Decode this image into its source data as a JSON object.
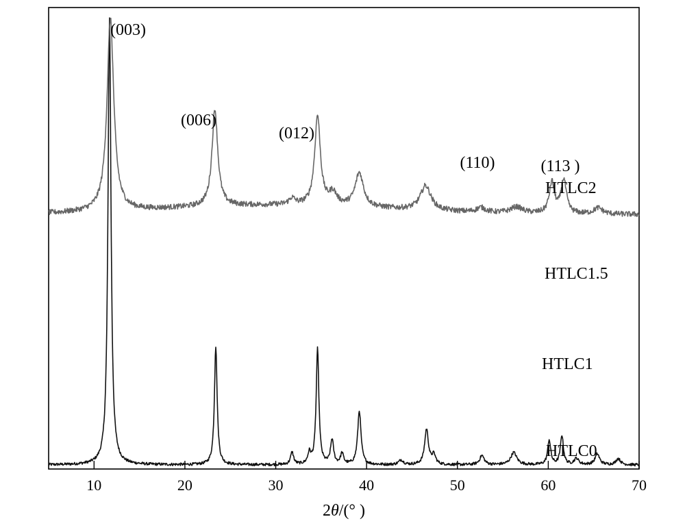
{
  "chart_data": {
    "type": "line",
    "xlabel_prefix": "2",
    "xlabel_theta": "θ",
    "xlabel_suffix": "/(° )",
    "xlim": [
      5,
      70
    ],
    "y_ticks_shown": false,
    "x_ticks": [
      10,
      20,
      30,
      40,
      50,
      60,
      70
    ],
    "peak_labels": [
      {
        "text": "(003)",
        "x": 11.5
      },
      {
        "text": "(006)",
        "x": 23.0
      },
      {
        "text": "(012)",
        "x": 34.5
      },
      {
        "text": "(110)",
        "x": 60.5
      },
      {
        "text": "(113 )",
        "x": 61.8
      }
    ],
    "series": [
      {
        "name": "HTLC0",
        "color": "#111111",
        "baseline": 0.0,
        "x_start": 5,
        "peaks": [
          [
            11.7,
            29.0,
            0.2
          ],
          [
            23.4,
            7.7,
            0.18
          ],
          [
            31.8,
            0.8,
            0.2
          ],
          [
            33.7,
            0.7,
            0.2
          ],
          [
            34.6,
            7.5,
            0.18
          ],
          [
            36.2,
            1.6,
            0.2
          ],
          [
            37.3,
            0.7,
            0.2
          ],
          [
            39.2,
            3.5,
            0.22
          ],
          [
            43.8,
            0.3,
            0.3
          ],
          [
            46.6,
            2.3,
            0.25
          ],
          [
            47.4,
            0.6,
            0.25
          ],
          [
            52.7,
            0.6,
            0.3
          ],
          [
            56.2,
            0.8,
            0.4
          ],
          [
            60.1,
            1.6,
            0.2
          ],
          [
            61.5,
            1.9,
            0.2
          ],
          [
            63.1,
            0.4,
            0.3
          ],
          [
            65.4,
            0.7,
            0.3
          ],
          [
            67.7,
            0.4,
            0.3
          ]
        ]
      },
      {
        "name": "HTLC1",
        "color": "#666666",
        "baseline": 16.5,
        "x_start": 5,
        "peaks": [
          [
            11.8,
            12.5,
            0.45
          ],
          [
            23.3,
            6.3,
            0.38
          ],
          [
            31.8,
            0.4,
            0.4
          ],
          [
            34.6,
            5.8,
            0.38
          ],
          [
            36.3,
            0.8,
            0.5
          ],
          [
            39.2,
            2.2,
            0.55
          ],
          [
            46.5,
            1.6,
            0.7
          ],
          [
            52.6,
            0.3,
            0.6
          ],
          [
            56.5,
            0.4,
            0.8
          ],
          [
            60.4,
            2.0,
            0.35
          ],
          [
            61.7,
            2.2,
            0.35
          ],
          [
            65.5,
            0.4,
            0.6
          ]
        ]
      },
      {
        "name": "HTLC1.5",
        "color": "#333333",
        "baseline": 33.0,
        "x_start": 5,
        "peaks": [
          [
            11.6,
            22.5,
            0.4
          ],
          [
            23.2,
            6.8,
            0.35
          ],
          [
            31.8,
            0.4,
            0.4
          ],
          [
            34.6,
            5.3,
            0.35
          ],
          [
            36.2,
            0.4,
            0.5
          ],
          [
            39.2,
            2.2,
            0.45
          ],
          [
            46.4,
            1.4,
            0.6
          ],
          [
            52.6,
            0.3,
            0.5
          ],
          [
            56.0,
            0.4,
            0.7
          ],
          [
            60.2,
            2.4,
            0.32
          ],
          [
            61.6,
            2.4,
            0.32
          ],
          [
            65.5,
            0.5,
            0.5
          ]
        ]
      },
      {
        "name": "HTLC2",
        "color": "#7a7a7a",
        "baseline": 49.5,
        "x_start": 8,
        "peaks": [
          [
            11.7,
            34.0,
            0.7
          ],
          [
            23.1,
            12.5,
            0.55
          ],
          [
            34.7,
            9.5,
            0.55
          ],
          [
            39.2,
            3.6,
            1.1
          ],
          [
            46.3,
            2.6,
            1.3
          ],
          [
            52.6,
            0.4,
            0.8
          ],
          [
            56.0,
            0.5,
            1.0
          ],
          [
            60.5,
            5.2,
            0.4
          ],
          [
            61.8,
            5.2,
            0.4
          ],
          [
            65.4,
            1.2,
            0.5
          ]
        ]
      }
    ]
  }
}
